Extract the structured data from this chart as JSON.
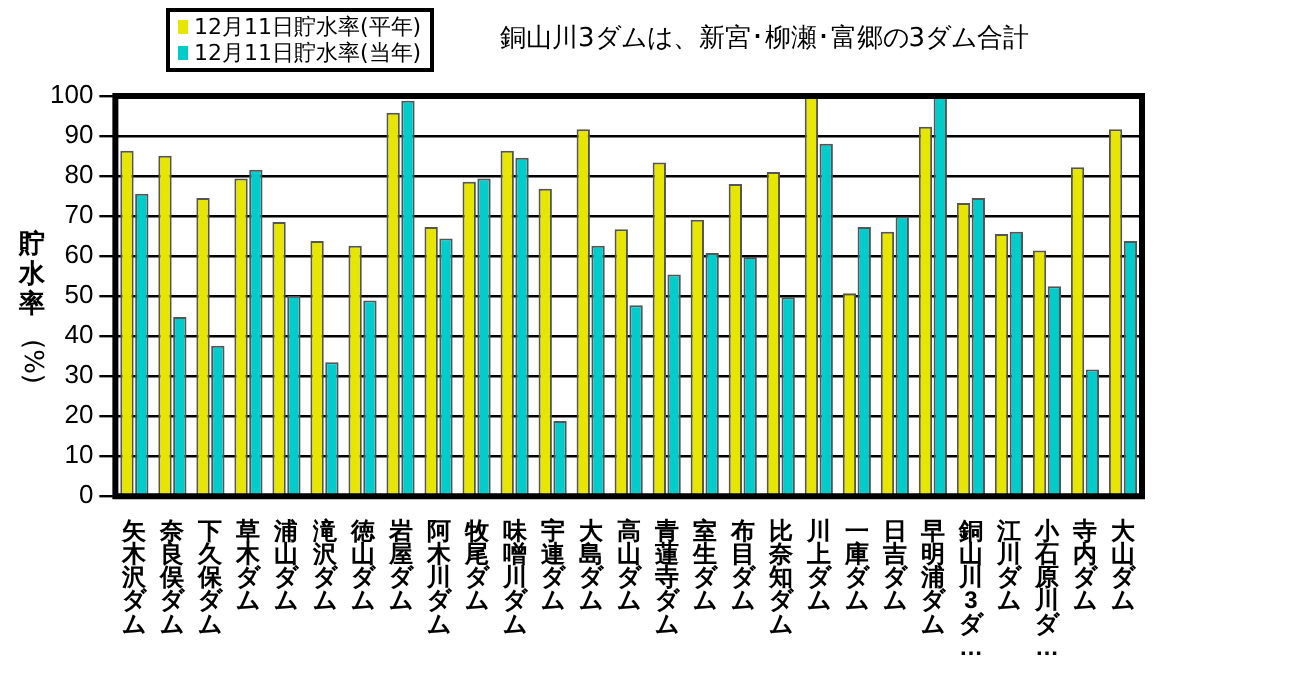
{
  "chart_data": {
    "type": "bar",
    "ylabel": "貯水率(%)",
    "annotations": [
      "銅山川3ダムは、新宮･柳瀬･富郷の3ダム合計"
    ],
    "categories": [
      "矢木沢ダム",
      "奈良俣ダム",
      "下久保ダム",
      "草木ダム",
      "浦山ダム",
      "滝沢ダム",
      "徳山ダム",
      "岩屋ダム",
      "阿木川ダム",
      "牧尾ダム",
      "味噌川ダム",
      "宇連ダム",
      "大島ダム",
      "高山ダム",
      "青蓮寺ダム",
      "室生ダム",
      "布目ダム",
      "比奈知ダム",
      "川上ダム",
      "一庫ダム",
      "日吉ダム",
      "早明浦ダム",
      "銅山川3ダ…",
      "江川ダム",
      "小石原川ダ…",
      "寺内ダム",
      "大山ダム"
    ],
    "series": [
      {
        "name": "12月11日貯水率(平年)",
        "color": "#e6e600",
        "values": [
          86.3,
          85.1,
          74.5,
          79.4,
          68.5,
          63.8,
          62.6,
          95.8,
          67.3,
          78.6,
          86.3,
          76.8,
          91.7,
          66.7,
          83.4,
          69.1,
          78.0,
          81.0,
          100,
          50.7,
          66.1,
          92.3,
          73.3,
          65.5,
          61.4,
          82.2,
          91.7
        ]
      },
      {
        "name": "12月11日貯水率(当年)",
        "color": "#00cccc",
        "values": [
          75.6,
          44.8,
          37.6,
          81.6,
          50.1,
          33.5,
          48.9,
          98.8,
          64.4,
          79.4,
          84.6,
          18.8,
          62.6,
          47.7,
          55.4,
          60.8,
          59.8,
          49.7,
          88.1,
          67.3,
          69.9,
          100,
          74.5,
          66.1,
          52.5,
          31.7,
          63.8
        ]
      }
    ],
    "ylim": [
      0,
      100
    ],
    "yticks": [
      0,
      10,
      20,
      30,
      40,
      50,
      60,
      70,
      80,
      90,
      100
    ],
    "grid": "y",
    "legend": "top left"
  }
}
